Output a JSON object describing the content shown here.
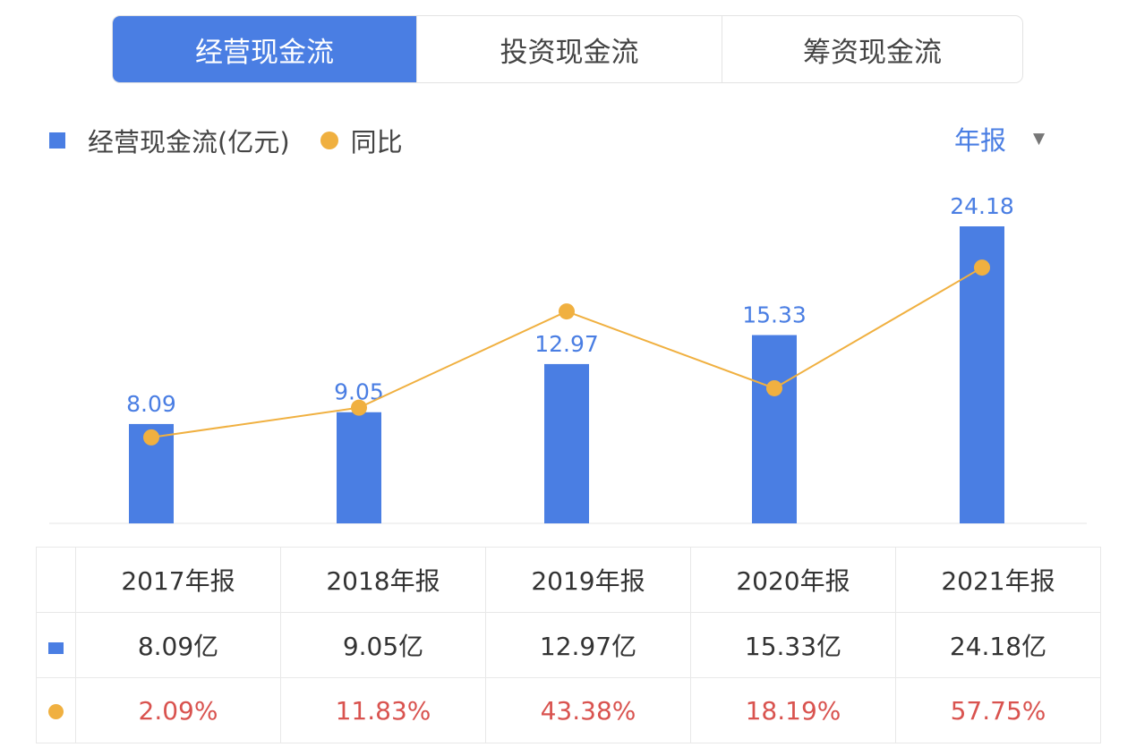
{
  "tabs": [
    {
      "label": "经营现金流",
      "active": true
    },
    {
      "label": "投资现金流",
      "active": false
    },
    {
      "label": "筹资现金流",
      "active": false
    }
  ],
  "period_selector": {
    "label": "年报",
    "icon": "caret-down-icon"
  },
  "colors": {
    "bar": "#4a7ee3",
    "line": "#f0b040",
    "accent": "#4a7ee3",
    "pct_text": "#d9534f"
  },
  "chart_data": {
    "type": "bar+line",
    "categories": [
      "2017年报",
      "2018年报",
      "2019年报",
      "2020年报",
      "2021年报"
    ],
    "series": [
      {
        "name": "经营现金流(亿元)",
        "type": "bar",
        "values": [
          8.09,
          9.05,
          12.97,
          15.33,
          24.18
        ],
        "labels": [
          "8.09",
          "9.05",
          "12.97",
          "15.33",
          "24.18"
        ]
      },
      {
        "name": "同比",
        "type": "line",
        "unit": "%",
        "values": [
          2.09,
          11.83,
          43.38,
          18.19,
          57.75
        ]
      }
    ],
    "legend": "top-left",
    "grid": false
  },
  "table": {
    "headers": [
      "2017年报",
      "2018年报",
      "2019年报",
      "2020年报",
      "2021年报"
    ],
    "values": [
      "8.09亿",
      "9.05亿",
      "12.97亿",
      "15.33亿",
      "24.18亿"
    ],
    "yoy": [
      "2.09%",
      "11.83%",
      "43.38%",
      "18.19%",
      "57.75%"
    ]
  }
}
